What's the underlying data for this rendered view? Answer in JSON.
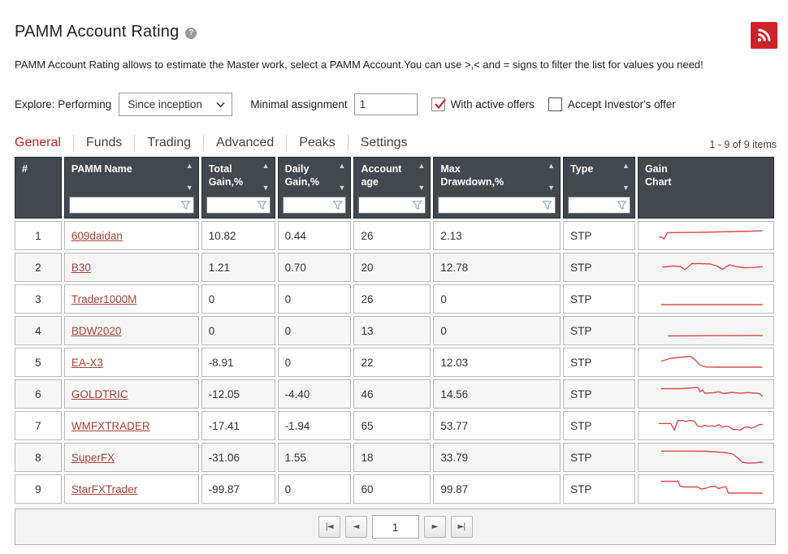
{
  "page": {
    "title": "PAMM Account Rating",
    "help_icon": "?",
    "description": "PAMM Account Rating allows to estimate the Master work, select a PAMM Account.You can use >,< and = signs to filter the list for values you need!"
  },
  "colors": {
    "accent_red": "#cc2229",
    "active_tab_red": "#c22127",
    "link_red": "#a8423a",
    "sparkline_red": "#dd4b4b",
    "header_bg": "#43484e",
    "funnel_blue": "#8fb4cd",
    "check_red": "#cc2d2d"
  },
  "filters": {
    "explore_label": "Explore: Performing",
    "period_value": "Since inception",
    "minimal_assignment_label": "Minimal assignment",
    "minimal_assignment_value": "1",
    "with_active_offers_label": "With active offers",
    "with_active_offers_checked": true,
    "accept_investors_offer_label": "Accept Investor's offer",
    "accept_investors_offer_checked": false
  },
  "tabs": [
    {
      "label": "General",
      "active": true
    },
    {
      "label": "Funds",
      "active": false
    },
    {
      "label": "Trading",
      "active": false
    },
    {
      "label": "Advanced",
      "active": false
    },
    {
      "label": "Peaks",
      "active": false
    },
    {
      "label": "Settings",
      "active": false
    }
  ],
  "items_count": "1 - 9 of 9 items",
  "table": {
    "columns": [
      {
        "key": "num",
        "label": "#",
        "sortable": false,
        "filterable": false
      },
      {
        "key": "name",
        "label": "PAMM Name",
        "sortable": true,
        "filterable": true
      },
      {
        "key": "total_gain",
        "label": "Total\nGain,%",
        "sortable": true,
        "filterable": true
      },
      {
        "key": "daily_gain",
        "label": "Daily\nGain,%",
        "sortable": true,
        "filterable": true
      },
      {
        "key": "age",
        "label": "Account\nage",
        "sortable": true,
        "filterable": true
      },
      {
        "key": "max_drawdown",
        "label": "Max\nDrawdown,%",
        "sortable": true,
        "filterable": true
      },
      {
        "key": "type",
        "label": "Type",
        "sortable": true,
        "filterable": true
      },
      {
        "key": "chart",
        "label": "Gain\nChart",
        "sortable": false,
        "filterable": false
      }
    ],
    "rows": [
      {
        "num": "1",
        "name": "609daidan",
        "total_gain": "10.82",
        "daily_gain": "0.44",
        "age": "26",
        "max_drawdown": "2.13",
        "type": "STP"
      },
      {
        "num": "2",
        "name": "B30",
        "total_gain": "1.21",
        "daily_gain": "0.70",
        "age": "20",
        "max_drawdown": "12.78",
        "type": "STP"
      },
      {
        "num": "3",
        "name": "Trader1000M",
        "total_gain": "0",
        "daily_gain": "0",
        "age": "26",
        "max_drawdown": "0",
        "type": "STP"
      },
      {
        "num": "4",
        "name": "BDW2020",
        "total_gain": "0",
        "daily_gain": "0",
        "age": "13",
        "max_drawdown": "0",
        "type": "STP"
      },
      {
        "num": "5",
        "name": "EA-X3",
        "total_gain": "-8.91",
        "daily_gain": "0",
        "age": "22",
        "max_drawdown": "12.03",
        "type": "STP"
      },
      {
        "num": "6",
        "name": "GOLDTRIC",
        "total_gain": "-12.05",
        "daily_gain": "-4.40",
        "age": "46",
        "max_drawdown": "14.56",
        "type": "STP"
      },
      {
        "num": "7",
        "name": "WMFXTRADER",
        "total_gain": "-17.41",
        "daily_gain": "-1.94",
        "age": "65",
        "max_drawdown": "53.77",
        "type": "STP"
      },
      {
        "num": "8",
        "name": "SuperFX",
        "total_gain": "-31.06",
        "daily_gain": "1.55",
        "age": "18",
        "max_drawdown": "33.79",
        "type": "STP"
      },
      {
        "num": "9",
        "name": "StarFXTrader",
        "total_gain": "-99.87",
        "daily_gain": "0",
        "age": "60",
        "max_drawdown": "99.87",
        "type": "STP"
      }
    ]
  },
  "chart_data": {
    "type": "line",
    "note": "Gain Chart sparklines per row; points are [x%, y%] with y measured from top of cell",
    "color": "#dd4b4b",
    "series": [
      {
        "name": "609daidan",
        "points": [
          [
            10,
            62
          ],
          [
            13,
            66
          ],
          [
            14,
            74
          ],
          [
            17,
            42
          ],
          [
            25,
            41
          ],
          [
            45,
            40
          ],
          [
            60,
            38
          ],
          [
            75,
            36
          ],
          [
            90,
            34
          ],
          [
            98,
            32
          ]
        ]
      },
      {
        "name": "B30",
        "points": [
          [
            13,
            55
          ],
          [
            22,
            50
          ],
          [
            28,
            52
          ],
          [
            32,
            68
          ],
          [
            38,
            38
          ],
          [
            45,
            38
          ],
          [
            54,
            40
          ],
          [
            60,
            52
          ],
          [
            64,
            66
          ],
          [
            70,
            44
          ],
          [
            76,
            52
          ],
          [
            82,
            58
          ],
          [
            90,
            57
          ],
          [
            98,
            53
          ]
        ]
      },
      {
        "name": "Trader1000M",
        "points": [
          [
            12,
            84
          ],
          [
            98,
            84
          ]
        ]
      },
      {
        "name": "BDW2020",
        "points": [
          [
            18,
            82
          ],
          [
            98,
            80
          ]
        ]
      },
      {
        "name": "EA-X3",
        "points": [
          [
            12,
            50
          ],
          [
            20,
            36
          ],
          [
            30,
            30
          ],
          [
            37,
            27
          ],
          [
            41,
            45
          ],
          [
            45,
            70
          ],
          [
            50,
            79
          ],
          [
            60,
            80
          ],
          [
            98,
            80
          ]
        ]
      },
      {
        "name": "GOLDTRIC",
        "points": [
          [
            12,
            30
          ],
          [
            28,
            30
          ],
          [
            38,
            26
          ],
          [
            43,
            23
          ],
          [
            45,
            45
          ],
          [
            47,
            36
          ],
          [
            49,
            52
          ],
          [
            56,
            50
          ],
          [
            61,
            45
          ],
          [
            65,
            54
          ],
          [
            72,
            48
          ],
          [
            79,
            52
          ],
          [
            86,
            49
          ],
          [
            93,
            52
          ],
          [
            96,
            55
          ],
          [
            98,
            66
          ]
        ]
      },
      {
        "name": "WMFXTRADER",
        "points": [
          [
            10,
            45
          ],
          [
            20,
            45
          ],
          [
            23,
            78
          ],
          [
            26,
            32
          ],
          [
            30,
            30
          ],
          [
            33,
            36
          ],
          [
            36,
            30
          ],
          [
            40,
            34
          ],
          [
            43,
            58
          ],
          [
            46,
            62
          ],
          [
            49,
            54
          ],
          [
            52,
            60
          ],
          [
            55,
            56
          ],
          [
            58,
            60
          ],
          [
            61,
            50
          ],
          [
            64,
            64
          ],
          [
            67,
            58
          ],
          [
            70,
            62
          ],
          [
            73,
            76
          ],
          [
            76,
            74
          ],
          [
            79,
            78
          ],
          [
            83,
            64
          ],
          [
            86,
            62
          ],
          [
            89,
            68
          ],
          [
            92,
            62
          ],
          [
            95,
            52
          ],
          [
            98,
            50
          ]
        ]
      },
      {
        "name": "SuperFX",
        "points": [
          [
            12,
            25
          ],
          [
            50,
            26
          ],
          [
            60,
            30
          ],
          [
            68,
            34
          ],
          [
            73,
            40
          ],
          [
            77,
            58
          ],
          [
            81,
            80
          ],
          [
            86,
            84
          ],
          [
            92,
            83
          ],
          [
            98,
            79
          ]
        ]
      },
      {
        "name": "StarFXTrader",
        "points": [
          [
            12,
            18
          ],
          [
            26,
            18
          ],
          [
            28,
            42
          ],
          [
            32,
            46
          ],
          [
            43,
            46
          ],
          [
            46,
            56
          ],
          [
            50,
            52
          ],
          [
            54,
            44
          ],
          [
            58,
            42
          ],
          [
            61,
            54
          ],
          [
            64,
            48
          ],
          [
            67,
            44
          ],
          [
            69,
            76
          ],
          [
            80,
            76
          ],
          [
            98,
            76
          ]
        ]
      }
    ]
  },
  "pagination": {
    "first_label": "|◄",
    "prev_label": "◄",
    "page_value": "1",
    "next_label": "►",
    "last_label": "►|"
  }
}
